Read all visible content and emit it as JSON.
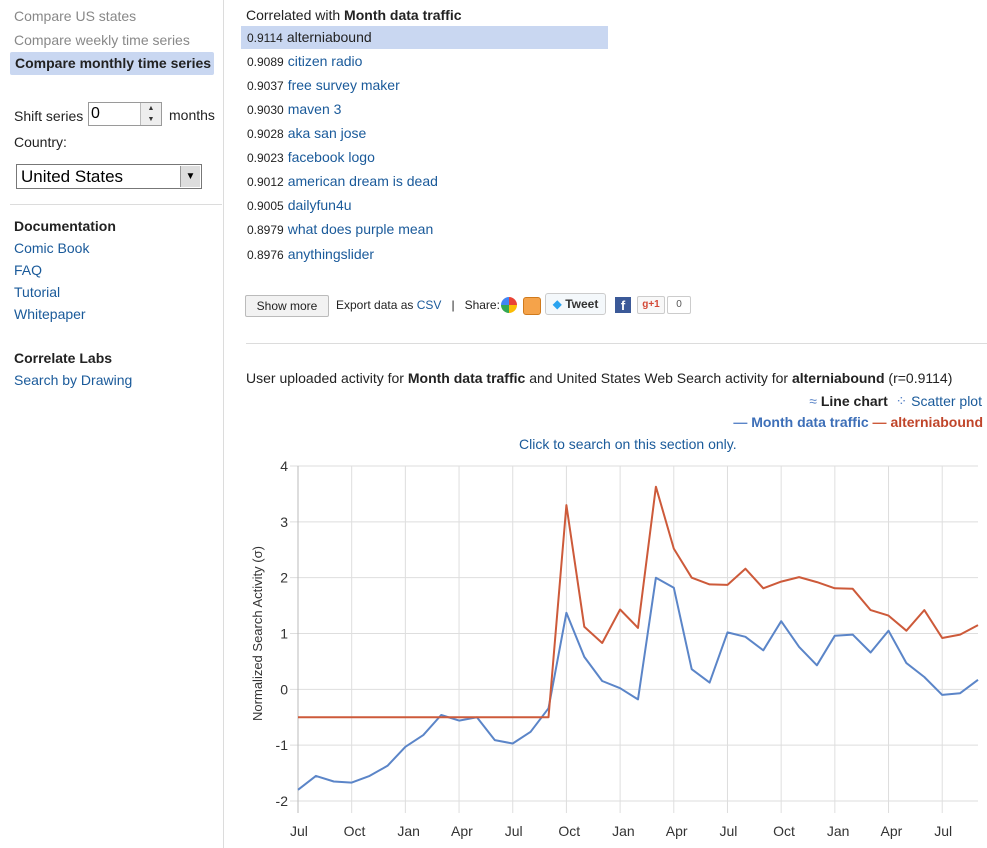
{
  "sidebar": {
    "nav": [
      "Compare US states",
      "Compare weekly time series",
      "Compare monthly time series"
    ],
    "shift_label": "Shift series",
    "shift_value": "0",
    "shift_unit": "months",
    "country_label": "Country:",
    "country_value": "United States",
    "documentation_heading": "Documentation",
    "documentation_links": [
      "Comic Book",
      "FAQ",
      "Tutorial",
      "Whitepaper"
    ],
    "labs_heading": "Correlate Labs",
    "labs_links": [
      "Search by Drawing"
    ]
  },
  "results": {
    "title_prefix": "Correlated with",
    "title_series": "Month data traffic",
    "items": [
      {
        "score": "0.9114",
        "term": "alterniabound"
      },
      {
        "score": "0.9089",
        "term": "citizen radio"
      },
      {
        "score": "0.9037",
        "term": "free survey maker"
      },
      {
        "score": "0.9030",
        "term": "maven 3"
      },
      {
        "score": "0.9028",
        "term": "aka san jose"
      },
      {
        "score": "0.9023",
        "term": "facebook logo"
      },
      {
        "score": "0.9012",
        "term": "american dream is dead"
      },
      {
        "score": "0.9005",
        "term": "dailyfun4u"
      },
      {
        "score": "0.8979",
        "term": "what does purple mean"
      },
      {
        "score": "0.8976",
        "term": "anythingslider"
      }
    ],
    "show_more": "Show more",
    "export_label": "Export data as",
    "export_link": "CSV",
    "separator": "|",
    "share_label": "Share:",
    "tweet_label": "Tweet",
    "gplus_label": "+1",
    "gplus_count": "0"
  },
  "chart_header": {
    "desc_1": "User uploaded activity for ",
    "desc_series": "Month data traffic",
    "desc_2": " and United States Web Search activity for ",
    "desc_term": "alterniabound",
    "desc_r": " (r=0.9114)",
    "line_chart": "Line chart",
    "scatter_plot": "Scatter plot",
    "legend_dash": "—",
    "click_hint": "Click to search on this section only."
  },
  "colors": {
    "series_blue": "#5b85c8",
    "series_red": "#cd5a3a",
    "link": "#1a5a9a",
    "selected_bg": "#c9d7f1"
  },
  "chart_data": {
    "type": "line",
    "ylabel": "Normalized Search Activity (σ)",
    "ylim": [
      -2,
      4
    ],
    "yticks": [
      4,
      3,
      2,
      1,
      0,
      -1,
      -2
    ],
    "xtick_labels": [
      "Jul",
      "Oct",
      "Jan",
      "Apr",
      "Jul",
      "Oct",
      "Jan",
      "Apr",
      "Jul",
      "Oct",
      "Jan",
      "Apr",
      "Jul"
    ],
    "xtick_index": [
      0,
      3,
      6,
      9,
      12,
      15,
      18,
      21,
      24,
      27,
      30,
      33,
      36
    ],
    "grid": true,
    "legend_position": "top-right",
    "series": [
      {
        "name": "Month data traffic",
        "color": "#5b85c8",
        "values": [
          -1.8,
          -1.55,
          -1.65,
          -1.67,
          -1.55,
          -1.37,
          -1.03,
          -0.82,
          -0.46,
          -0.56,
          -0.5,
          -0.91,
          -0.97,
          -0.76,
          -0.34,
          1.37,
          0.58,
          0.15,
          0.02,
          -0.18,
          2.0,
          1.82,
          0.36,
          0.12,
          1.02,
          0.94,
          0.7,
          1.22,
          0.76,
          0.43,
          0.96,
          0.98,
          0.66,
          1.05,
          0.47,
          0.22,
          -0.1,
          -0.07,
          0.17
        ]
      },
      {
        "name": "alterniabound",
        "color": "#cd5a3a",
        "values": [
          -0.5,
          -0.5,
          -0.5,
          -0.5,
          -0.5,
          -0.5,
          -0.5,
          -0.5,
          -0.5,
          -0.5,
          -0.5,
          -0.5,
          -0.5,
          -0.5,
          -0.5,
          3.3,
          1.12,
          0.83,
          1.43,
          1.1,
          3.63,
          2.52,
          2.0,
          1.88,
          1.87,
          2.16,
          1.81,
          1.93,
          2.01,
          1.92,
          1.81,
          1.8,
          1.42,
          1.32,
          1.05,
          1.42,
          0.92,
          0.98,
          1.15
        ]
      }
    ]
  }
}
